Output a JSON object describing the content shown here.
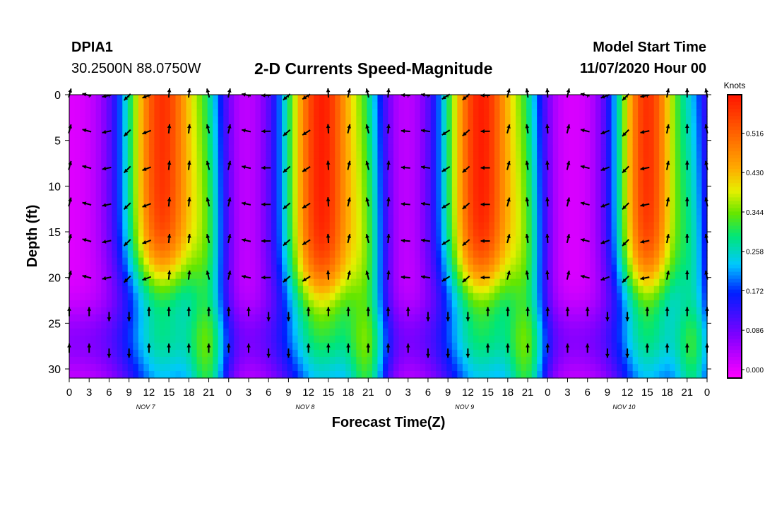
{
  "header": {
    "station": "DPIA1",
    "coords": "30.2500N 88.0750W",
    "title": "2-D Currents Speed-Magnitude",
    "model_start_label": "Model Start Time",
    "model_start_value": "11/07/2020 Hour 00"
  },
  "chart_data": {
    "type": "heatmap",
    "title": "2-D Currents Speed-Magnitude",
    "xlabel": "Forecast Time(Z)",
    "ylabel": "Depth (ft)",
    "x_ticks": [
      "0",
      "3",
      "6",
      "9",
      "12",
      "15",
      "18",
      "21",
      "0",
      "3",
      "6",
      "9",
      "12",
      "15",
      "18",
      "21",
      "0",
      "3",
      "6",
      "9",
      "12",
      "15",
      "18",
      "21",
      "0",
      "3",
      "6",
      "9",
      "12",
      "15",
      "18",
      "21",
      "0"
    ],
    "day_labels": [
      "NOV  7",
      "NOV  8",
      "NOV  9",
      "NOV  10"
    ],
    "xlim_hours": [
      0,
      96
    ],
    "y_ticks": [
      0,
      5,
      10,
      15,
      20,
      25,
      30
    ],
    "ylim_ft": [
      0,
      31
    ],
    "colorbar": {
      "unit": "Knots",
      "ticks": [
        "0.516",
        "0.430",
        "0.344",
        "0.258",
        "0.172",
        "0.086",
        "0.000"
      ],
      "range": [
        0,
        0.6
      ]
    },
    "arrow_depths_ft": [
      0,
      4,
      8,
      12,
      16,
      20,
      24,
      28
    ],
    "arrow_hours": [
      0,
      3,
      6,
      9,
      12,
      15,
      18,
      21,
      24,
      27,
      30,
      33,
      36,
      39,
      42,
      45,
      48,
      51,
      54,
      57,
      60,
      63,
      66,
      69,
      72,
      75,
      78,
      81,
      84,
      87,
      90,
      93,
      96
    ],
    "speed_peaks": [
      {
        "center_hour": 14,
        "width_hours": 6,
        "peak_knots": 0.55,
        "bottom_depth_ft": 20
      },
      {
        "center_hour": 38,
        "width_hours": 6,
        "peak_knots": 0.57,
        "bottom_depth_ft": 22
      },
      {
        "center_hour": 62,
        "width_hours": 6,
        "peak_knots": 0.57,
        "bottom_depth_ft": 21
      },
      {
        "center_hour": 87,
        "width_hours": 5,
        "peak_knots": 0.55,
        "bottom_depth_ft": 21
      }
    ],
    "ebb_direction_deg": 255,
    "flood_direction_deg": 0
  }
}
